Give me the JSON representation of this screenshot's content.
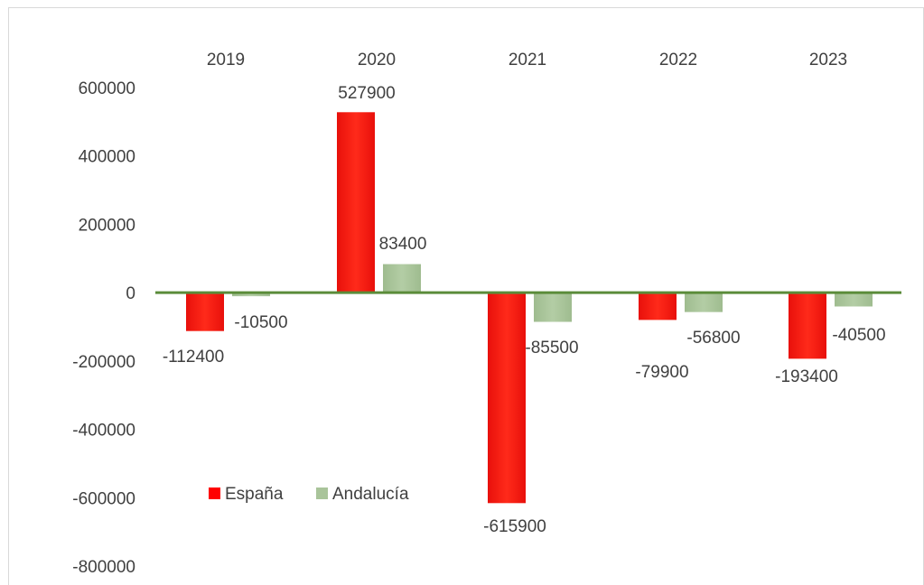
{
  "chart_data": {
    "type": "bar",
    "categories": [
      "2019",
      "2020",
      "2021",
      "2022",
      "2023"
    ],
    "series": [
      {
        "name": "España",
        "values": [
          -112400,
          527900,
          -615900,
          -79900,
          -193400
        ],
        "color": "#ff0000"
      },
      {
        "name": "Andalucía",
        "values": [
          -10500,
          83400,
          -85500,
          -56800,
          -40500
        ],
        "color": "#a9c49a"
      }
    ],
    "ylim": [
      -800000,
      600000
    ],
    "yticks": [
      600000,
      400000,
      200000,
      0,
      -200000,
      -400000,
      -600000,
      -800000
    ],
    "yticks_labels": [
      "600000",
      "400000",
      "200000",
      "0",
      "-200000",
      "-400000",
      "-600000",
      "-800000"
    ],
    "data_labels": [
      [
        "-112400",
        "527900",
        "-615900",
        "-79900",
        "-193400"
      ],
      [
        "-10500",
        "83400",
        "-85500",
        "-56800",
        "-40500"
      ]
    ],
    "category_axis_position": "top",
    "zero_line_color": "#5b8c3a",
    "grid": false,
    "legend_position": "bottom-left"
  }
}
